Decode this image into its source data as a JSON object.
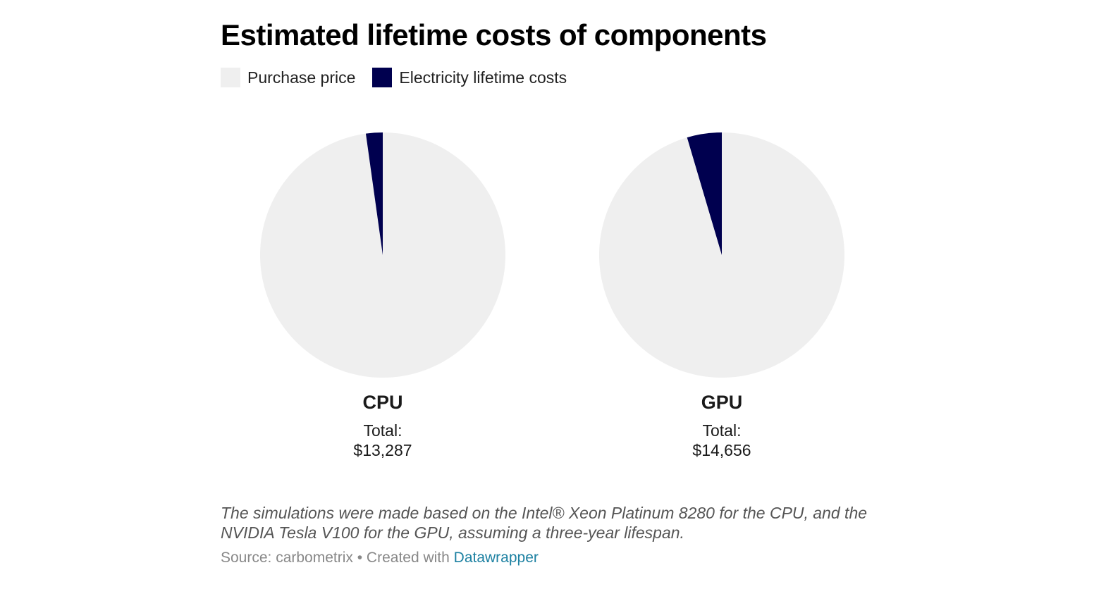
{
  "chart_data": {
    "type": "pie",
    "title": "Estimated lifetime costs of components",
    "legend": [
      {
        "name": "Purchase price",
        "color": "#efefef"
      },
      {
        "name": "Electricity lifetime costs",
        "color": "#00004f"
      }
    ],
    "pies": [
      {
        "label": "CPU",
        "total_label": "Total:",
        "total_value": "$13,287",
        "slices": [
          {
            "name": "Purchase price",
            "value": 12994
          },
          {
            "name": "Electricity lifetime costs",
            "value": 293
          }
        ]
      },
      {
        "label": "GPU",
        "total_label": "Total:",
        "total_value": "$14,656",
        "slices": [
          {
            "name": "Purchase price",
            "value": 13986
          },
          {
            "name": "Electricity lifetime costs",
            "value": 670
          }
        ]
      }
    ],
    "notes": "The simulations were made based on the Intel® Xeon Platinum 8280 for the CPU, and the NVIDIA Tesla V100 for the GPU, assuming a three-year lifespan."
  },
  "footer": {
    "source_prefix": "Source: carbometrix • Created with ",
    "source_link": "Datawrapper"
  }
}
